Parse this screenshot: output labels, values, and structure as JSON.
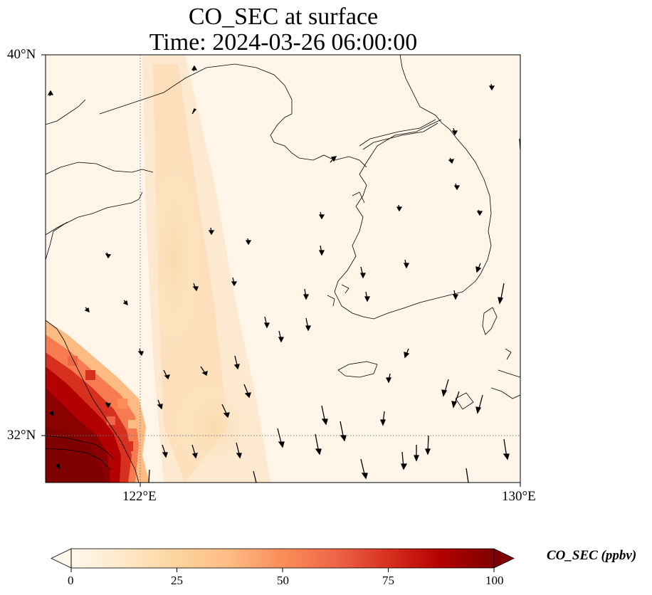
{
  "title": {
    "line1": "CO_SEC at surface",
    "line2": "Time: 2024-03-26 06:00:00"
  },
  "axes": {
    "lat_labels": [
      "40°N",
      "32°N"
    ],
    "lon_labels": [
      "122°E",
      "130°E"
    ],
    "lon_range": [
      120,
      130
    ],
    "lat_range": [
      31,
      40
    ],
    "gridlines": "dotted at 122°E and 32°N"
  },
  "colorbar": {
    "label": "CO_SEC (ppbv)",
    "ticks": [
      "0",
      "25",
      "50",
      "75",
      "100"
    ],
    "range": [
      0,
      100
    ],
    "colormap": "OrRd",
    "extend": "both"
  },
  "colors": {
    "low": "#fff7ec",
    "mid": "#fdbb84",
    "high": "#7f0000"
  },
  "map": {
    "region": "Yellow Sea / Korean Peninsula / East China",
    "overlay": "surface wind vectors"
  }
}
